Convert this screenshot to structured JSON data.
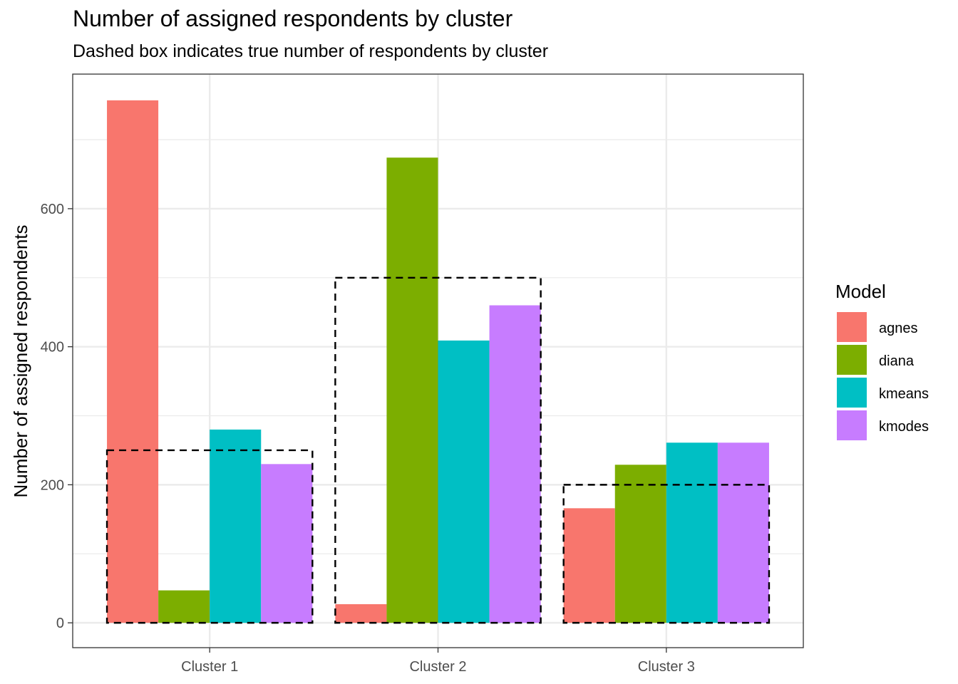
{
  "chart_data": {
    "type": "bar",
    "title": "Number of assigned respondents by cluster",
    "subtitle": "Dashed box indicates true number of respondents by cluster",
    "xlabel": "",
    "ylabel": "Number of assigned respondents",
    "categories": [
      "Cluster 1",
      "Cluster 2",
      "Cluster 3"
    ],
    "series": [
      {
        "name": "agnes",
        "color": "#F8766D",
        "values": [
          757,
          27,
          166
        ]
      },
      {
        "name": "diana",
        "color": "#7CAE00",
        "values": [
          47,
          674,
          229
        ]
      },
      {
        "name": "kmeans",
        "color": "#00BFC4",
        "values": [
          280,
          409,
          261
        ]
      },
      {
        "name": "kmodes",
        "color": "#C77CFF",
        "values": [
          230,
          460,
          261
        ]
      }
    ],
    "true_counts": [
      250,
      500,
      200
    ],
    "y_ticks": [
      0,
      200,
      400,
      600
    ],
    "ylim": [
      -36,
      795
    ],
    "grid": true,
    "legend": {
      "title": "Model",
      "position": "right"
    }
  }
}
